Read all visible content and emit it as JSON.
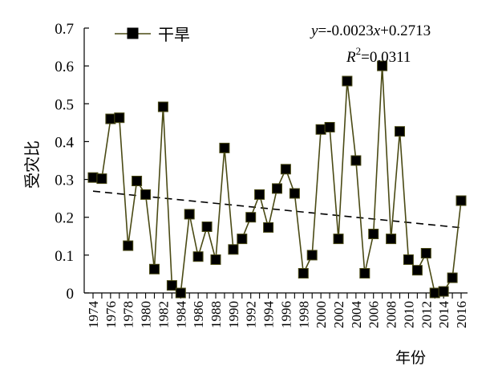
{
  "chart_data": {
    "type": "line",
    "ylabel": "受灾比",
    "xlabel": "年份",
    "xlim": [
      1974,
      2016
    ],
    "ylim": [
      0,
      0.7
    ],
    "y_ticks": [
      "0",
      "0.1",
      "0.2",
      "0.3",
      "0.4",
      "0.5",
      "0.6",
      "0.7"
    ],
    "x_ticks": [
      "1974",
      "1976",
      "1978",
      "1980",
      "1982",
      "1984",
      "1986",
      "1988",
      "1990",
      "1992",
      "1994",
      "1996",
      "1998",
      "2000",
      "2002",
      "2004",
      "2006",
      "2008",
      "2010",
      "2012",
      "2014",
      "2016"
    ],
    "legend_position": "top-left",
    "series": [
      {
        "name": "干旱",
        "color": "#4a4a14",
        "marker": "square",
        "x": [
          1974,
          1975,
          1976,
          1977,
          1978,
          1979,
          1980,
          1981,
          1982,
          1983,
          1984,
          1985,
          1986,
          1987,
          1988,
          1989,
          1990,
          1991,
          1992,
          1993,
          1994,
          1995,
          1996,
          1997,
          1998,
          1999,
          2000,
          2001,
          2002,
          2003,
          2004,
          2005,
          2006,
          2007,
          2008,
          2009,
          2010,
          2011,
          2012,
          2013,
          2014,
          2015,
          2016
        ],
        "y": [
          0.305,
          0.302,
          0.46,
          0.463,
          0.125,
          0.296,
          0.26,
          0.063,
          0.492,
          0.02,
          0.0,
          0.208,
          0.096,
          0.175,
          0.088,
          0.383,
          0.115,
          0.143,
          0.2,
          0.26,
          0.173,
          0.276,
          0.327,
          0.263,
          0.052,
          0.1,
          0.432,
          0.438,
          0.143,
          0.56,
          0.35,
          0.052,
          0.156,
          0.6,
          0.143,
          0.427,
          0.088,
          0.06,
          0.105,
          0.0,
          0.004,
          0.04,
          0.244
        ]
      }
    ],
    "trendline": {
      "style": "dashed",
      "slope": -0.0023,
      "intercept": 0.2713,
      "x_start": 1974,
      "x_end": 2016
    },
    "equation": {
      "y_label": "y",
      "text_main": "=-0.0023",
      "x_label": "x",
      "text_tail": "+0.2713",
      "r2_label": "R",
      "r2_sup": "2",
      "r2_value": "=0.0311"
    }
  }
}
